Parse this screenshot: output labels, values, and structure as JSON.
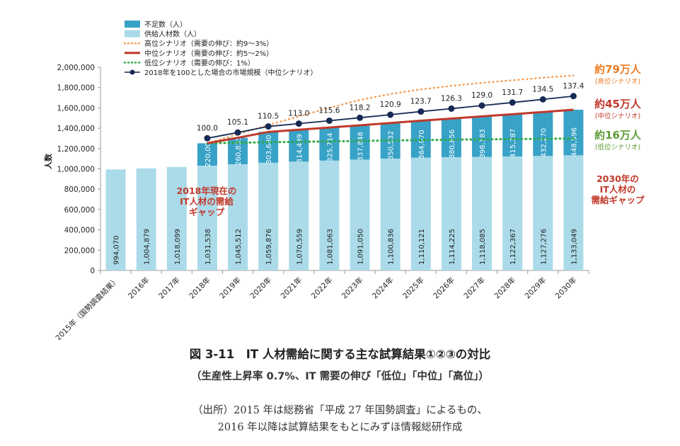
{
  "chart_data": {
    "type": "bar",
    "ylabel": "人数",
    "ylim": [
      0,
      2000000
    ],
    "yticks": [
      "0",
      "200,000",
      "400,000",
      "600,000",
      "800,000",
      "1,000,000",
      "1,200,000",
      "1,400,000",
      "1,600,000",
      "1,800,000",
      "2,000,000"
    ],
    "categories": [
      "2015年（国勢調査結果）",
      "2016年",
      "2017年",
      "2018年",
      "2019年",
      "2020年",
      "2021年",
      "2022年",
      "2023年",
      "2024年",
      "2025年",
      "2026年",
      "2027年",
      "2028年",
      "2029年",
      "2030年"
    ],
    "series": [
      {
        "name": "供給人材数（人）",
        "kind": "bar",
        "color": "#abdbe9",
        "values": [
          994070,
          1004879,
          1018099,
          1031538,
          1045512,
          1059876,
          1070559,
          1081063,
          1091050,
          1100836,
          1110121,
          1114225,
          1118085,
          1122367,
          1127276,
          1133049
        ],
        "labels": [
          "994,070",
          "1,004,879",
          "1,018,099",
          "1,031,538",
          "1,045,512",
          "1,059,876",
          "1,070,559",
          "1,081,063",
          "1,091,050",
          "1,100,836",
          "1,110,121",
          "1,114,225",
          "1,118,085",
          "1,122,367",
          "1,127,276",
          "1,133,049"
        ]
      },
      {
        "name": "不足数（人）",
        "kind": "bar-stacked",
        "color": "#38a2c7",
        "values": [
          null,
          null,
          null,
          220000,
          260835,
          303680,
          314439,
          325714,
          337848,
          350532,
          364070,
          380856,
          398183,
          415387,
          432270,
          448596
        ],
        "labels": [
          "",
          "",
          "",
          "220,000",
          "260,835",
          "303,680",
          "314,439",
          "325,714",
          "337,848",
          "350,532",
          "364,070",
          "380,856",
          "398,183",
          "415,387",
          "432,270",
          "448,596"
        ]
      },
      {
        "name": "高位シナリオ（需要の伸び：約9～3%）",
        "kind": "line-dotted",
        "color": "#f5a15b",
        "values": [
          null,
          null,
          null,
          1251538,
          1341000,
          1431000,
          1517000,
          1600000,
          1678000,
          1737000,
          1782000,
          1817000,
          1846000,
          1872000,
          1897000,
          1919000
        ]
      },
      {
        "name": "中位シナリオ（需要の伸び：約5～2%）",
        "kind": "line",
        "color": "#c0392b",
        "values": [
          null,
          null,
          null,
          1251538,
          1306347,
          1363556,
          1385000,
          1406777,
          1428898,
          1451368,
          1474191,
          1495081,
          1516269,
          1537754,
          1559546,
          1581645
        ]
      },
      {
        "name": "低位シナリオ（需要の伸び：1%）",
        "kind": "line-dotted-green",
        "color": "#2eaa47",
        "values": [
          null,
          null,
          null,
          1251538,
          1257000,
          1262000,
          1266000,
          1270000,
          1275000,
          1279000,
          1283000,
          1287000,
          1290000,
          1293000,
          1296000,
          1299000
        ]
      },
      {
        "name": "2018年を100とした場合の市場規模（中位シナリオ）",
        "kind": "line-marker",
        "color": "#172a54",
        "values": [
          null,
          null,
          null,
          100.0,
          105.1,
          110.5,
          113.0,
          115.6,
          118.2,
          120.9,
          123.7,
          126.3,
          129.0,
          131.7,
          134.5,
          137.4
        ],
        "labels": [
          "",
          "",
          "",
          "100.0",
          "105.1",
          "110.5",
          "113.0",
          "115.6",
          "118.2",
          "120.9",
          "123.7",
          "126.3",
          "129.0",
          "131.7",
          "134.5",
          "137.4"
        ]
      }
    ],
    "legend_position": "top-left",
    "annotations": {
      "high_main": "約79万人",
      "high_sub": "(高位シナリオ)",
      "mid_main": "約45万人",
      "mid_sub": "(中位シナリオ)",
      "low_main": "約16万人",
      "low_sub": "(低位シナリオ)",
      "gap2018": [
        "2018年現在の",
        "IT人材の需給",
        "ギャップ"
      ],
      "gap2030": [
        "2030年の",
        "IT人材の",
        "需給ギャップ"
      ]
    },
    "colors": {
      "supply": "#abdbe9",
      "shortage": "#38a2c7",
      "high": "#f5a15b",
      "mid": "#c0392b",
      "low": "#2eaa47",
      "index": "#172a54",
      "annot_high": "#ee7d24",
      "annot_mid": "#c0392b",
      "annot_low": "#5d9b36",
      "gap_text": "#c0392b"
    }
  },
  "caption": {
    "title": "図 3-11　IT 人材需給に関する主な試算結果①②③の対比",
    "subtitle": "（生産性上昇率 0.7%、IT 需要の伸び「低位」「中位」「高位」）",
    "source_line1": "（出所）2015 年は総務省「平成 27 年国勢調査」によるもの、",
    "source_line2": "2016 年以降は試算結果をもとにみずほ情報総研作成"
  }
}
